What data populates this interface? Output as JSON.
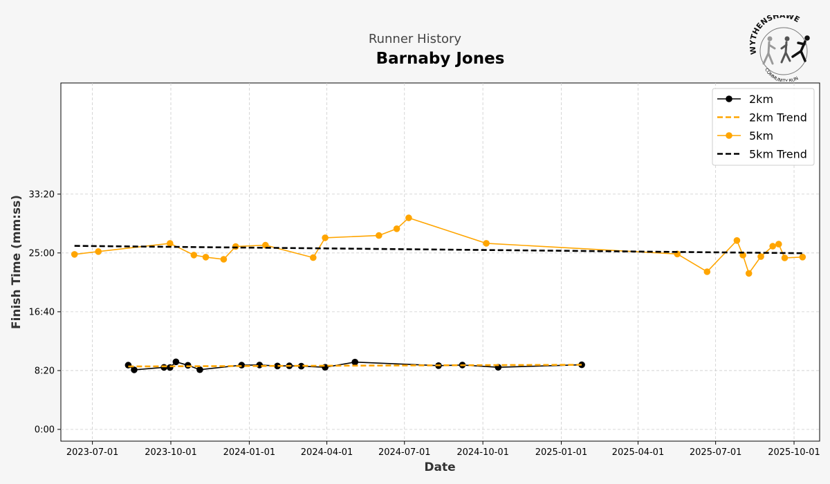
{
  "header": {
    "subtitle": "Runner History",
    "title": "Barnaby Jones"
  },
  "logo": {
    "top_text": "WYTHENSHAWE",
    "bottom_text": "COMMUNITY RUN"
  },
  "chart_data": {
    "type": "line",
    "xlabel": "Date",
    "ylabel": "Finish Time (mm:ss)",
    "x_type": "date",
    "xlim": [
      "2023-05-25",
      "2025-10-31"
    ],
    "ylim_seconds": [
      -100,
      2945
    ],
    "x_ticks": [
      "2023-07-01",
      "2023-10-01",
      "2024-01-01",
      "2024-04-01",
      "2024-07-01",
      "2024-10-01",
      "2025-01-01",
      "2025-04-01",
      "2025-07-01",
      "2025-10-01"
    ],
    "y_ticks": [
      "0:00",
      "8:20",
      "16:40",
      "25:00",
      "33:20"
    ],
    "y_ticks_seconds": [
      0,
      500,
      1000,
      1500,
      2000
    ],
    "grid": true,
    "legend_position": "top-right",
    "series": [
      {
        "name": "2km",
        "color": "#000000",
        "style": "line-markers",
        "points": [
          [
            "2023-08-12",
            "9:06"
          ],
          [
            "2023-08-19",
            "8:26"
          ],
          [
            "2023-09-23",
            "8:47"
          ],
          [
            "2023-09-30",
            "8:46"
          ],
          [
            "2023-10-07",
            "9:34"
          ],
          [
            "2023-10-21",
            "9:05"
          ],
          [
            "2023-11-04",
            "8:27"
          ],
          [
            "2023-12-23",
            "9:06"
          ],
          [
            "2024-01-13",
            "9:07"
          ],
          [
            "2024-02-03",
            "8:59"
          ],
          [
            "2024-02-17",
            "9:00"
          ],
          [
            "2024-03-02",
            "8:57"
          ],
          [
            "2024-03-30",
            "8:48"
          ],
          [
            "2024-05-04",
            "9:32"
          ],
          [
            "2024-08-10",
            "9:02"
          ],
          [
            "2024-09-07",
            "9:07"
          ],
          [
            "2024-10-19",
            "8:48"
          ],
          [
            "2025-01-25",
            "9:09"
          ]
        ]
      },
      {
        "name": "2km Trend",
        "color": "#ffa500",
        "style": "dashed",
        "points": [
          [
            "2023-08-12",
            "8:55"
          ],
          [
            "2025-01-25",
            "9:09"
          ]
        ]
      },
      {
        "name": "5km",
        "color": "#ffa500",
        "style": "line-markers",
        "points": [
          [
            "2023-06-10",
            "24:48"
          ],
          [
            "2023-07-08",
            "25:12"
          ],
          [
            "2023-09-30",
            "26:21"
          ],
          [
            "2023-10-28",
            "24:42"
          ],
          [
            "2023-11-11",
            "24:24"
          ],
          [
            "2023-12-02",
            "24:06"
          ],
          [
            "2023-12-16",
            "25:55"
          ],
          [
            "2024-01-20",
            "26:06"
          ],
          [
            "2024-03-16",
            "24:20"
          ],
          [
            "2024-03-30",
            "27:09"
          ],
          [
            "2024-06-01",
            "27:28"
          ],
          [
            "2024-06-22",
            "28:26"
          ],
          [
            "2024-07-06",
            "29:58"
          ],
          [
            "2024-10-05",
            "26:22"
          ],
          [
            "2025-05-17",
            "24:51"
          ],
          [
            "2025-06-21",
            "22:20"
          ],
          [
            "2025-07-26",
            "26:46"
          ],
          [
            "2025-08-02",
            "24:41"
          ],
          [
            "2025-08-09",
            "22:06"
          ],
          [
            "2025-08-23",
            "24:29"
          ],
          [
            "2025-09-06",
            "25:57"
          ],
          [
            "2025-09-13",
            "26:15"
          ],
          [
            "2025-09-20",
            "24:18"
          ],
          [
            "2025-10-11",
            "24:25"
          ]
        ]
      },
      {
        "name": "5km Trend",
        "color": "#000000",
        "style": "dashed",
        "points": [
          [
            "2023-06-10",
            "26:00"
          ],
          [
            "2025-10-11",
            "24:58"
          ]
        ]
      }
    ]
  }
}
